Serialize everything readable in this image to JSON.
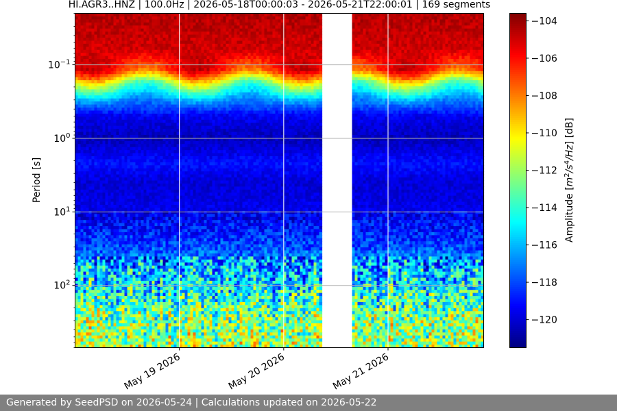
{
  "chart_data": {
    "type": "heatmap",
    "title": "HI.AGR3..HNZ | 100.0Hz | 2026-05-18T00:00:03 - 2026-05-21T22:00:01 | 169 segments",
    "ylabel": "Period [s]",
    "xlabel": "",
    "y_scale": "log",
    "y_inverted": true,
    "ylim": [
      0.02,
      700
    ],
    "y_ticks": [
      {
        "value": 0.1,
        "base": "10",
        "exp": "−1"
      },
      {
        "value": 1,
        "base": "10",
        "exp": "0"
      },
      {
        "value": 10,
        "base": "10",
        "exp": "1"
      },
      {
        "value": 100,
        "base": "10",
        "exp": "2"
      }
    ],
    "xlim": [
      "2026-05-18T00:00:03",
      "2026-05-21T22:00:01"
    ],
    "x_ticks": [
      {
        "value": "2026-05-19",
        "label": "May 19 2026"
      },
      {
        "value": "2026-05-20",
        "label": "May 20 2026"
      },
      {
        "value": "2026-05-21",
        "label": "May 21 2026"
      }
    ],
    "data_gaps": [
      [
        "2026-05-18T23:55",
        "2026-05-19T00:05"
      ],
      [
        "2026-05-19T23:55",
        "2026-05-20T00:05"
      ],
      [
        "2026-05-20T09:05",
        "2026-05-20T15:25"
      ],
      [
        "2026-05-20T23:55",
        "2026-05-21T00:05"
      ]
    ],
    "grid": true,
    "colormap": "jet",
    "colorbar": {
      "label": "Amplitude [m²/s⁴/Hz] [dB]",
      "range": [
        -121.5,
        -103.6
      ],
      "ticks": [
        -104,
        -106,
        -108,
        -110,
        -112,
        -114,
        -116,
        -118,
        -120
      ]
    },
    "amplitude_profile_db": [
      {
        "period": 0.02,
        "db": -104.5
      },
      {
        "period": 0.06,
        "db": -105
      },
      {
        "period": 0.12,
        "db": -106.5
      },
      {
        "period": 0.18,
        "db": -112
      },
      {
        "period": 0.3,
        "db": -116.5
      },
      {
        "period": 0.5,
        "db": -119.5
      },
      {
        "period": 1,
        "db": -120.5
      },
      {
        "period": 2.2,
        "db": -119
      },
      {
        "period": 4,
        "db": -120
      },
      {
        "period": 12,
        "db": -119.5
      },
      {
        "period": 30,
        "db": -118
      },
      {
        "period": 60,
        "db": -116
      },
      {
        "period": 150,
        "db": -114
      },
      {
        "period": 300,
        "db": -112.5
      },
      {
        "period": 700,
        "db": -112
      }
    ]
  },
  "footer": {
    "text": "Generated by SeedPSD on 2026-05-24 | Calculations updated on 2026-05-22"
  },
  "colors": {
    "footer_bg": "#808080",
    "footer_text": "#ffffff",
    "gridline": "#b0b0b0"
  }
}
